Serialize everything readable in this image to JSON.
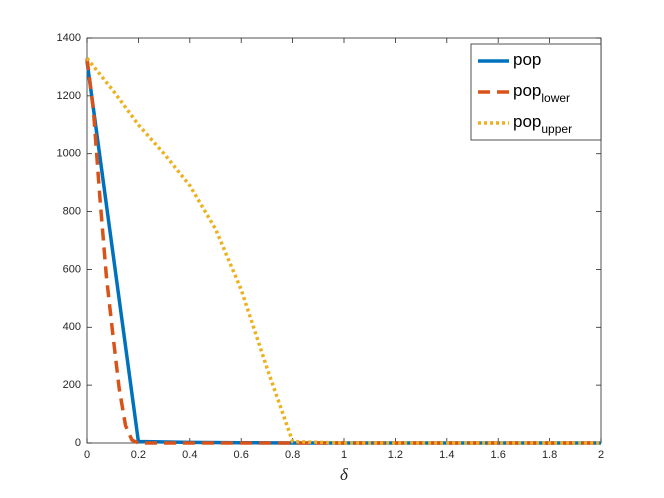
{
  "chart_data": {
    "type": "line",
    "xlabel": "δ",
    "xlim": [
      0,
      2
    ],
    "ylim": [
      0,
      1400
    ],
    "xticks": [
      0,
      0.2,
      0.4,
      0.6,
      0.8,
      1,
      1.2,
      1.4,
      1.6,
      1.8,
      2
    ],
    "yticks": [
      0,
      200,
      400,
      600,
      800,
      1000,
      1200,
      1400
    ],
    "legend": "top-right",
    "series": [
      {
        "name": "pop",
        "color": "#0072bd",
        "dash": "solid",
        "x": [
          0,
          0.2,
          0.4,
          0.6,
          0.8,
          1,
          1.2,
          1.4,
          1.6,
          1.8,
          2
        ],
        "values": [
          1320,
          5,
          2,
          1,
          0,
          0,
          0,
          0,
          0,
          0,
          0
        ]
      },
      {
        "name": "pop",
        "subscript": "lower",
        "color": "#d95319",
        "dash": "dashed",
        "x": [
          0,
          0.025,
          0.05,
          0.075,
          0.1,
          0.125,
          0.15,
          0.175,
          0.2,
          0.4,
          0.6,
          0.8,
          1,
          1.2,
          1.4,
          1.6,
          1.8,
          2
        ],
        "values": [
          1330,
          1150,
          850,
          580,
          380,
          190,
          60,
          10,
          0,
          0,
          0,
          0,
          0,
          0,
          0,
          0,
          0,
          0
        ]
      },
      {
        "name": "pop",
        "subscript": "upper",
        "color": "#edb120",
        "dash": "dotted",
        "x": [
          0,
          0.1,
          0.2,
          0.3,
          0.4,
          0.5,
          0.6,
          0.7,
          0.8,
          1,
          1.2,
          1.4,
          1.6,
          1.8,
          2
        ],
        "values": [
          1330,
          1220,
          1100,
          1000,
          890,
          740,
          530,
          260,
          5,
          0,
          0,
          0,
          0,
          0,
          0
        ]
      }
    ]
  }
}
